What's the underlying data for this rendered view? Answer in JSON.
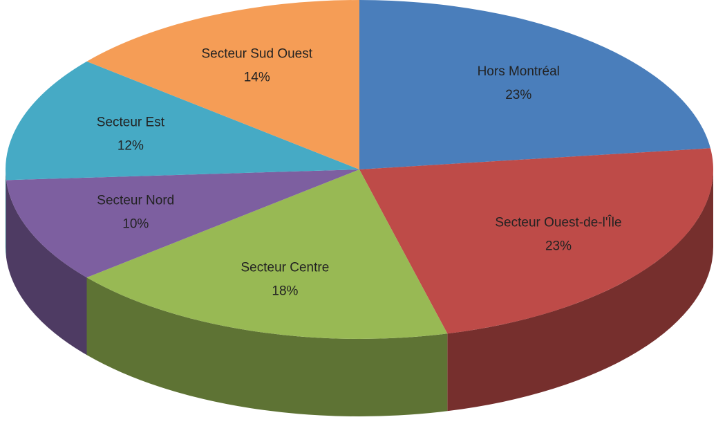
{
  "chart_data": {
    "type": "pie",
    "categories": [
      "Hors Montréal",
      "Secteur Ouest-de-l'Île",
      "Secteur Centre",
      "Secteur Nord",
      "Secteur Est",
      "Secteur Sud Ouest"
    ],
    "values": [
      23,
      23,
      18,
      10,
      12,
      14
    ],
    "value_labels": [
      "23%",
      "23%",
      "18%",
      "10%",
      "12%",
      "14%"
    ],
    "colors": [
      "#4a7ebb",
      "#be4b48",
      "#98b954",
      "#7d5fa0",
      "#46aac5",
      "#f59d56"
    ]
  }
}
